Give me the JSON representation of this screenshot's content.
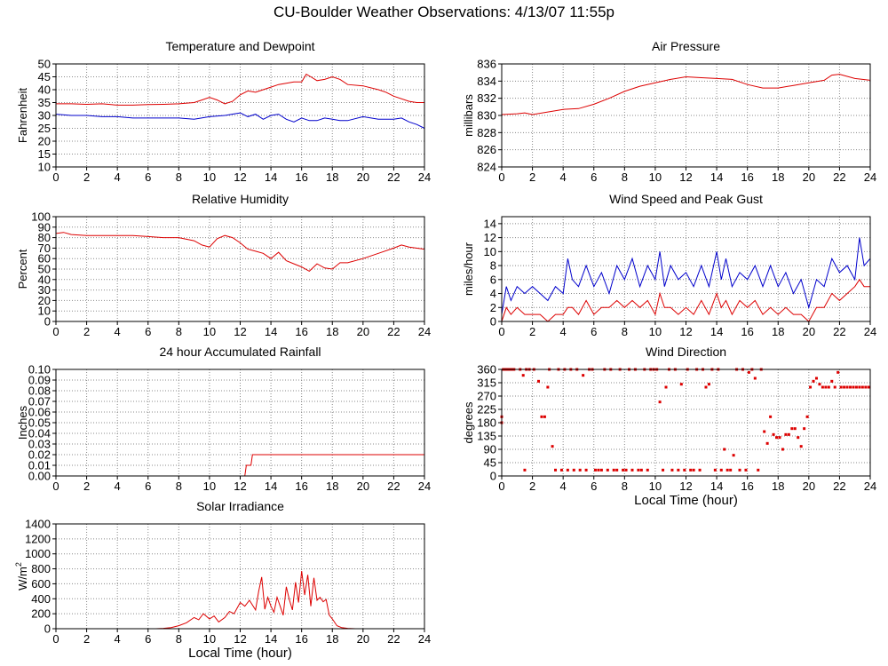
{
  "page": {
    "title": "CU-Boulder Weather Observations: 4/13/07 11:55p"
  },
  "colors": {
    "red_series": "#dd0000",
    "blue_series": "#0000cc",
    "grid": "#888888",
    "frame": "#000000"
  },
  "chart_data": [
    {
      "id": "temperature",
      "type": "line",
      "title": "Temperature and Dewpoint",
      "xlabel": "",
      "ylabel": "Fahrenheit",
      "xlim": [
        0,
        24
      ],
      "ylim": [
        10,
        50
      ],
      "xticks": [
        0,
        2,
        4,
        6,
        8,
        10,
        12,
        14,
        16,
        18,
        20,
        22,
        24
      ],
      "yticks": [
        10,
        15,
        20,
        25,
        30,
        35,
        40,
        45,
        50
      ],
      "grid": true,
      "series": [
        {
          "color": "red",
          "x": [
            0,
            1,
            2,
            3,
            4,
            5,
            6,
            7,
            8,
            9,
            9.5,
            10,
            10.5,
            11,
            11.5,
            12,
            12.5,
            13,
            13.5,
            14,
            14.5,
            15,
            15.5,
            16,
            16.3,
            16.6,
            17,
            17.5,
            18,
            18.5,
            19,
            20,
            21,
            21.5,
            22,
            23,
            23.5,
            24
          ],
          "y": [
            34.5,
            34.5,
            34.3,
            34.5,
            34,
            34,
            34.2,
            34.3,
            34.5,
            35,
            36,
            37,
            36,
            34.5,
            35.5,
            38,
            39.5,
            39,
            40,
            41,
            42,
            42.5,
            43,
            43,
            46,
            45,
            43.5,
            44,
            45,
            44,
            42,
            41.5,
            40,
            39,
            37.5,
            35.5,
            35,
            35
          ]
        },
        {
          "color": "blue",
          "x": [
            0,
            1,
            2,
            3,
            4,
            5,
            6,
            7,
            8,
            9,
            10,
            11,
            12,
            12.5,
            13,
            13.5,
            14,
            14.5,
            15,
            15.5,
            16,
            16.5,
            17,
            17.5,
            18,
            18.5,
            19,
            20,
            21,
            22,
            22.5,
            23,
            23.5,
            24
          ],
          "y": [
            30.5,
            30,
            30,
            29.5,
            29.5,
            29,
            29,
            29,
            29,
            28.5,
            29.5,
            30,
            31,
            29.5,
            30.5,
            28.5,
            30,
            30.5,
            28.5,
            27.5,
            29,
            28,
            28,
            29,
            28.5,
            28,
            28,
            29.5,
            28.5,
            28.5,
            29,
            27.5,
            26.5,
            25
          ]
        }
      ]
    },
    {
      "id": "pressure",
      "type": "line",
      "title": "Air Pressure",
      "xlabel": "",
      "ylabel": "millibars",
      "xlim": [
        0,
        24
      ],
      "ylim": [
        824,
        836
      ],
      "xticks": [
        0,
        2,
        4,
        6,
        8,
        10,
        12,
        14,
        16,
        18,
        20,
        22,
        24
      ],
      "yticks": [
        824,
        826,
        828,
        830,
        832,
        834,
        836
      ],
      "grid": true,
      "series": [
        {
          "color": "red",
          "x": [
            0,
            1,
            1.5,
            2,
            3,
            4,
            5,
            6,
            7,
            8,
            9,
            10,
            11,
            12,
            13,
            14,
            15,
            16,
            17,
            18,
            19,
            20,
            21,
            21.5,
            22,
            23,
            24
          ],
          "y": [
            830.1,
            830.2,
            830.3,
            830.1,
            830.4,
            830.7,
            830.8,
            831.3,
            832,
            832.8,
            833.4,
            833.8,
            834.2,
            834.5,
            834.4,
            834.3,
            834.2,
            833.6,
            833.2,
            833.2,
            833.5,
            833.8,
            834.1,
            834.7,
            834.8,
            834.3,
            834.1
          ]
        }
      ]
    },
    {
      "id": "humidity",
      "type": "line",
      "title": "Relative Humidity",
      "xlabel": "",
      "ylabel": "Percent",
      "xlim": [
        0,
        24
      ],
      "ylim": [
        0,
        100
      ],
      "xticks": [
        0,
        2,
        4,
        6,
        8,
        10,
        12,
        14,
        16,
        18,
        20,
        22,
        24
      ],
      "yticks": [
        0,
        10,
        20,
        30,
        40,
        50,
        60,
        70,
        80,
        90,
        100
      ],
      "grid": true,
      "series": [
        {
          "color": "red",
          "x": [
            0,
            0.5,
            1,
            2,
            3,
            4,
            5,
            6,
            7,
            8,
            9,
            9.5,
            10,
            10.5,
            11,
            11.5,
            12,
            12.5,
            13,
            13.5,
            14,
            14.5,
            15,
            15.5,
            16,
            16.5,
            17,
            17.5,
            18,
            18.5,
            19,
            20,
            21,
            22,
            22.5,
            23,
            24
          ],
          "y": [
            84,
            85,
            83,
            82,
            82,
            82,
            82,
            81,
            80,
            80,
            77,
            73,
            71,
            79,
            82,
            80,
            75,
            69,
            67,
            65,
            60,
            66,
            58,
            55,
            52,
            48,
            55,
            51,
            50,
            56,
            56,
            60,
            65,
            70,
            73,
            71,
            69
          ]
        }
      ]
    },
    {
      "id": "wind_speed",
      "type": "line",
      "title": "Wind Speed and Peak Gust",
      "xlabel": "",
      "ylabel": "miles/hour",
      "xlim": [
        0,
        24
      ],
      "ylim": [
        0,
        15
      ],
      "xticks": [
        0,
        2,
        4,
        6,
        8,
        10,
        12,
        14,
        16,
        18,
        20,
        22,
        24
      ],
      "yticks": [
        0,
        2,
        4,
        6,
        8,
        10,
        12,
        14
      ],
      "grid": true,
      "series": [
        {
          "color": "blue",
          "x": [
            0,
            0.3,
            0.6,
            1,
            1.5,
            2,
            2.5,
            3,
            3.5,
            4,
            4.3,
            4.6,
            5,
            5.5,
            6,
            6.5,
            7,
            7.5,
            8,
            8.5,
            9,
            9.5,
            10,
            10.3,
            10.6,
            11,
            11.5,
            12,
            12.5,
            13,
            13.5,
            14,
            14.3,
            14.6,
            15,
            15.5,
            16,
            16.5,
            17,
            17.5,
            18,
            18.5,
            19,
            19.5,
            20,
            20.5,
            21,
            21.5,
            22,
            22.5,
            23,
            23.3,
            23.6,
            24
          ],
          "y": [
            1,
            5,
            3,
            5,
            4,
            5,
            4,
            3,
            5,
            4,
            9,
            6,
            5,
            8,
            5,
            7,
            4,
            8,
            6,
            9,
            5,
            8,
            6,
            10,
            5,
            8,
            6,
            7,
            5,
            8,
            5,
            10,
            6,
            9,
            5,
            7,
            6,
            8,
            5,
            8,
            5,
            7,
            4,
            6,
            2,
            6,
            5,
            9,
            7,
            8,
            6,
            12,
            8,
            9
          ]
        },
        {
          "color": "red",
          "x": [
            0,
            0.3,
            0.6,
            1,
            1.5,
            2,
            2.5,
            3,
            3.5,
            4,
            4.3,
            4.6,
            5,
            5.5,
            6,
            6.5,
            7,
            7.5,
            8,
            8.5,
            9,
            9.5,
            10,
            10.3,
            10.6,
            11,
            11.5,
            12,
            12.5,
            13,
            13.5,
            14,
            14.3,
            14.6,
            15,
            15.5,
            16,
            16.5,
            17,
            17.5,
            18,
            18.5,
            19,
            19.5,
            20,
            20.5,
            21,
            21.5,
            22,
            22.5,
            23,
            23.3,
            23.6,
            24
          ],
          "y": [
            0,
            2,
            1,
            2,
            1,
            1,
            1,
            0,
            1,
            1,
            2,
            2,
            1,
            3,
            1,
            2,
            2,
            3,
            2,
            3,
            2,
            3,
            1,
            4,
            2,
            2,
            1,
            2,
            1,
            3,
            1,
            4,
            2,
            3,
            1,
            3,
            2,
            3,
            1,
            2,
            1,
            2,
            1,
            1,
            0,
            2,
            2,
            4,
            3,
            4,
            5,
            6,
            5,
            5
          ]
        }
      ]
    },
    {
      "id": "rainfall",
      "type": "line",
      "title": "24 hour Accumulated Rainfall",
      "xlabel": "",
      "ylabel": "Inches",
      "xlim": [
        0,
        24
      ],
      "ylim": [
        0,
        0.1
      ],
      "xticks": [
        0,
        2,
        4,
        6,
        8,
        10,
        12,
        14,
        16,
        18,
        20,
        22,
        24
      ],
      "yticks": [
        "0.00",
        "0.01",
        "0.02",
        "0.03",
        "0.04",
        "0.05",
        "0.06",
        "0.07",
        "0.08",
        "0.09",
        "0.10"
      ],
      "grid": true,
      "series": [
        {
          "color": "red",
          "x": [
            0,
            12.3,
            12.4,
            12.7,
            12.8,
            24
          ],
          "y": [
            0,
            0,
            0.01,
            0.01,
            0.02,
            0.02
          ]
        }
      ]
    },
    {
      "id": "wind_direction",
      "type": "scatter",
      "title": "Wind Direction",
      "xlabel": "Local Time (hour)",
      "ylabel": "degrees",
      "xlim": [
        0,
        24
      ],
      "ylim": [
        0,
        360
      ],
      "xticks": [
        0,
        2,
        4,
        6,
        8,
        10,
        12,
        14,
        16,
        18,
        20,
        22,
        24
      ],
      "yticks": [
        0,
        45,
        90,
        135,
        180,
        225,
        270,
        315,
        360
      ],
      "grid": true,
      "series": [
        {
          "color": "red",
          "x": [
            0,
            0,
            0.1,
            0.2,
            0.3,
            0.4,
            0.5,
            0.6,
            0.7,
            0.8,
            1.2,
            1.4,
            1.5,
            1.6,
            1.8,
            2.1,
            2.4,
            2.6,
            2.8,
            3.0,
            3.1,
            3.3,
            3.5,
            3.7,
            3.9,
            4.1,
            4.3,
            4.5,
            4.7,
            4.9,
            5.1,
            5.3,
            5.5,
            5.7,
            5.9,
            6.1,
            6.3,
            6.5,
            6.7,
            6.9,
            7.1,
            7.3,
            7.5,
            7.7,
            7.9,
            8.1,
            8.3,
            8.5,
            8.7,
            8.9,
            9.1,
            9.3,
            9.5,
            9.7,
            9.9,
            10.1,
            10.3,
            10.5,
            10.7,
            10.9,
            11.1,
            11.3,
            11.5,
            11.7,
            11.9,
            12.1,
            12.3,
            12.5,
            12.7,
            12.9,
            13.1,
            13.3,
            13.5,
            13.7,
            13.9,
            14.1,
            14.3,
            14.5,
            14.7,
            14.9,
            15.1,
            15.3,
            15.5,
            15.7,
            15.9,
            16.1,
            16.3,
            16.5,
            16.7,
            16.9,
            17.1,
            17.3,
            17.5,
            17.7,
            17.9,
            18.1,
            18.3,
            18.5,
            18.7,
            18.9,
            19.1,
            19.3,
            19.5,
            19.7,
            19.9,
            20.1,
            20.3,
            20.5,
            20.7,
            20.9,
            21.1,
            21.3,
            21.5,
            21.7,
            21.9,
            22.1,
            22.3,
            22.5,
            22.7,
            22.9,
            23.1,
            23.3,
            23.5,
            23.7,
            23.9
          ],
          "y": [
            180,
            200,
            360,
            360,
            360,
            360,
            360,
            360,
            360,
            360,
            360,
            340,
            20,
            360,
            360,
            360,
            320,
            200,
            200,
            300,
            360,
            100,
            20,
            360,
            20,
            360,
            20,
            360,
            20,
            360,
            20,
            340,
            20,
            360,
            360,
            20,
            20,
            20,
            360,
            20,
            360,
            20,
            20,
            360,
            20,
            20,
            360,
            20,
            360,
            20,
            20,
            360,
            20,
            360,
            360,
            360,
            250,
            20,
            300,
            360,
            20,
            360,
            20,
            310,
            20,
            360,
            20,
            20,
            360,
            20,
            360,
            300,
            310,
            360,
            20,
            360,
            20,
            90,
            20,
            20,
            70,
            360,
            20,
            360,
            20,
            350,
            360,
            330,
            20,
            360,
            150,
            110,
            200,
            140,
            130,
            130,
            90,
            140,
            140,
            160,
            160,
            130,
            100,
            160,
            200,
            300,
            320,
            330,
            310,
            300,
            300,
            300,
            320,
            300,
            350,
            300,
            300,
            300,
            300,
            300,
            300,
            300,
            300,
            300,
            300
          ]
        }
      ]
    },
    {
      "id": "solar",
      "type": "line",
      "title": "Solar Irradiance",
      "xlabel": "Local Time (hour)",
      "ylabel": "W/m",
      "ylabel_superscript": "2",
      "xlim": [
        0,
        24
      ],
      "ylim": [
        0,
        1400
      ],
      "xticks": [
        0,
        2,
        4,
        6,
        8,
        10,
        12,
        14,
        16,
        18,
        20,
        22,
        24
      ],
      "yticks": [
        0,
        200,
        400,
        600,
        800,
        1000,
        1200,
        1400
      ],
      "grid": true,
      "series": [
        {
          "color": "red",
          "x": [
            0,
            6.5,
            7,
            7.5,
            8,
            8.5,
            9,
            9.3,
            9.6,
            10,
            10.3,
            10.6,
            11,
            11.3,
            11.6,
            12,
            12.3,
            12.6,
            13,
            13.2,
            13.4,
            13.6,
            13.8,
            14,
            14.2,
            14.4,
            14.6,
            14.8,
            15,
            15.2,
            15.4,
            15.6,
            15.8,
            16,
            16.2,
            16.4,
            16.6,
            16.8,
            17,
            17.2,
            17.4,
            17.6,
            17.8,
            18,
            18.3,
            18.6,
            19,
            19.5,
            24
          ],
          "y": [
            0,
            0,
            5,
            15,
            40,
            80,
            150,
            120,
            200,
            130,
            170,
            90,
            150,
            230,
            200,
            350,
            300,
            380,
            250,
            500,
            690,
            260,
            420,
            300,
            220,
            420,
            300,
            180,
            560,
            390,
            250,
            620,
            350,
            770,
            450,
            720,
            300,
            680,
            380,
            420,
            360,
            390,
            180,
            130,
            40,
            15,
            5,
            0,
            0
          ]
        }
      ]
    }
  ]
}
